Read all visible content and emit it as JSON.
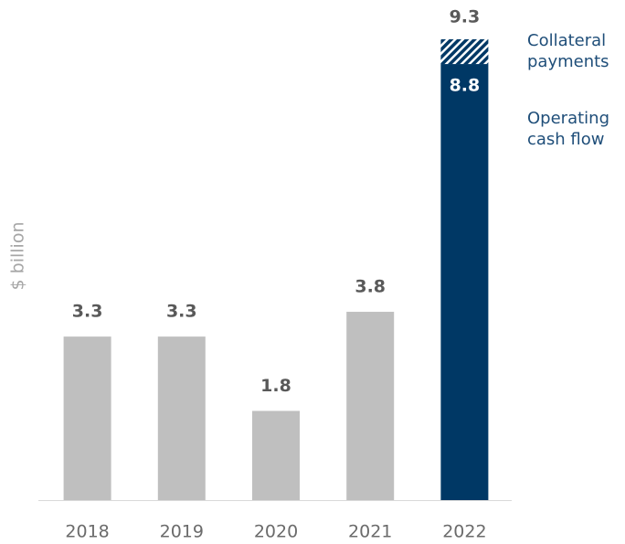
{
  "chart_data": {
    "type": "stacked_bar",
    "y_label": "$ billion",
    "categories": [
      "2018",
      "2019",
      "2020",
      "2021",
      "2022"
    ],
    "series": [
      {
        "name": "Operating cash flow",
        "colors": [
          "#bfbfbf",
          "#bfbfbf",
          "#bfbfbf",
          "#bfbfbf",
          "#003865"
        ],
        "values": [
          3.3,
          3.3,
          1.8,
          3.8,
          8.8
        ]
      },
      {
        "name": "Collateral payments",
        "color": "#003865",
        "pattern": "hatch",
        "values": [
          null,
          null,
          null,
          null,
          0.5
        ]
      }
    ],
    "totals": [
      null,
      null,
      null,
      null,
      9.3
    ],
    "ylim": [
      0,
      10
    ],
    "legend_color": "#1f4e79"
  }
}
